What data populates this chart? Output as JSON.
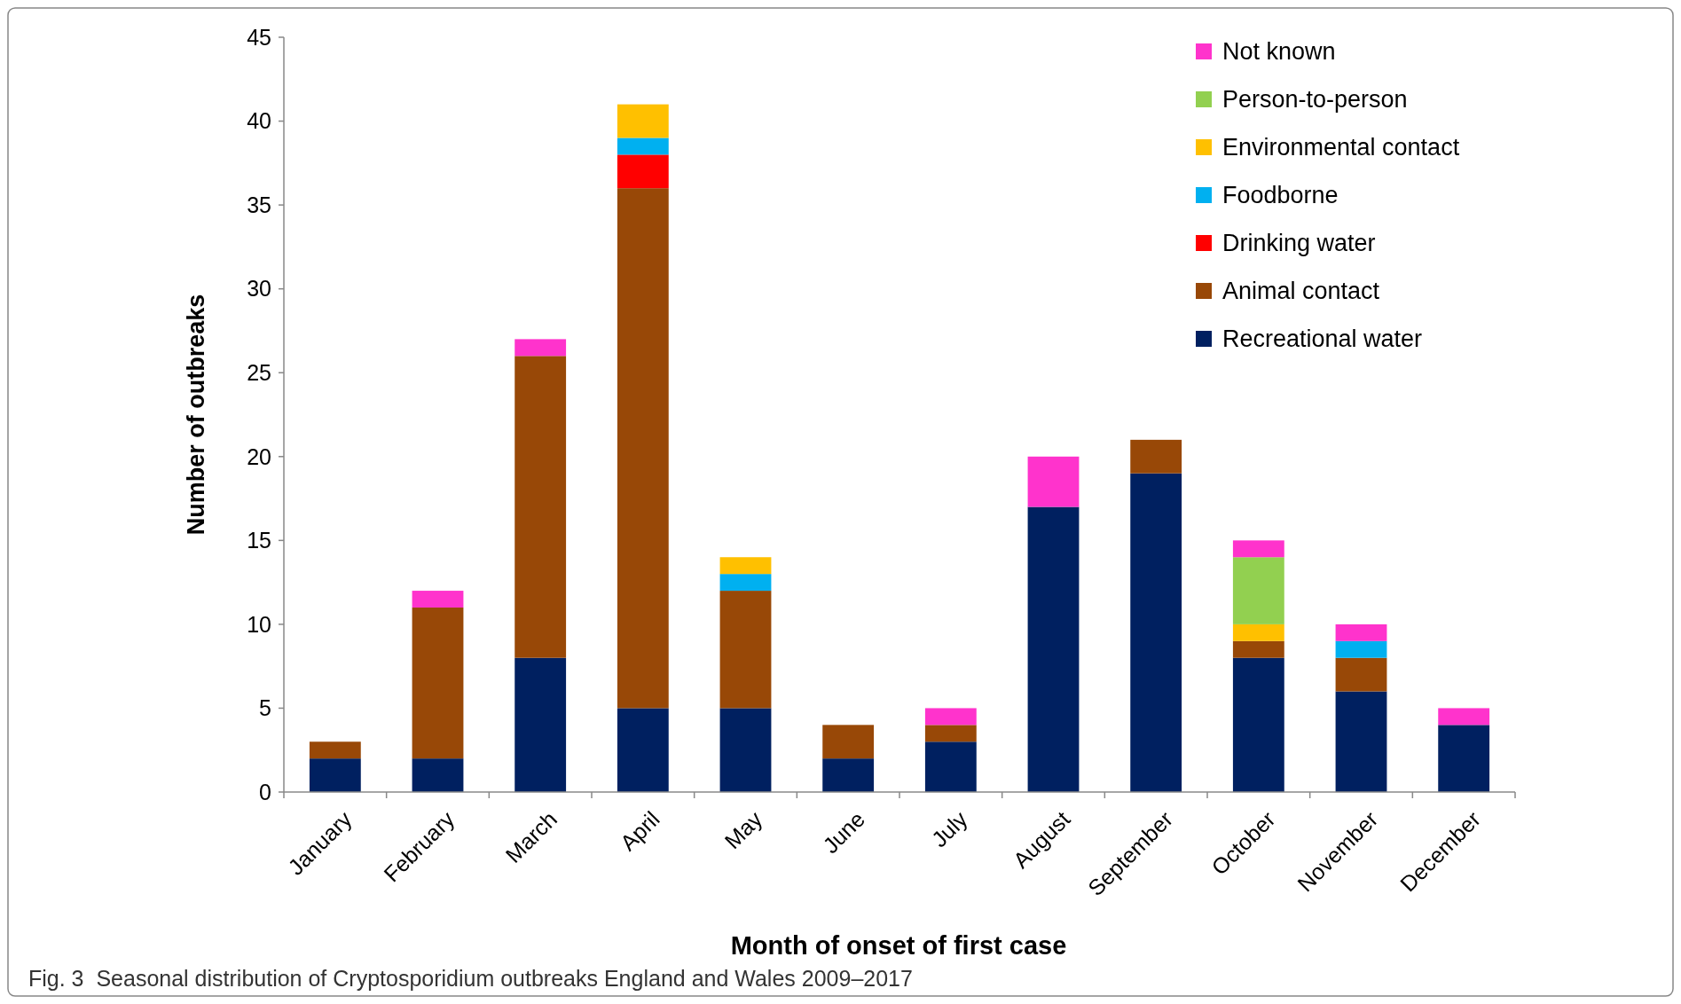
{
  "chart_data": {
    "type": "bar",
    "stacked": true,
    "xlabel": "Month of onset of first case",
    "ylabel": "Number of outbreaks",
    "categories": [
      "January",
      "February",
      "March",
      "April",
      "May",
      "June",
      "July",
      "August",
      "September",
      "October",
      "November",
      "December"
    ],
    "series": [
      {
        "name": "Recreational water",
        "color": "#002060",
        "values": [
          2,
          2,
          8,
          5,
          5,
          2,
          3,
          17,
          19,
          8,
          6,
          4
        ]
      },
      {
        "name": "Animal contact",
        "color": "#984807",
        "values": [
          1,
          9,
          18,
          31,
          7,
          2,
          1,
          null,
          2,
          1,
          2,
          null
        ]
      },
      {
        "name": "Drinking water",
        "color": "#ff0000",
        "values": [
          null,
          null,
          null,
          2,
          null,
          null,
          null,
          null,
          null,
          null,
          null,
          null
        ]
      },
      {
        "name": "Foodborne",
        "color": "#00b0f0",
        "values": [
          null,
          null,
          null,
          1,
          1,
          null,
          null,
          null,
          null,
          null,
          1,
          null
        ]
      },
      {
        "name": "Environmental contact",
        "color": "#ffc000",
        "values": [
          null,
          null,
          null,
          2,
          1,
          null,
          null,
          null,
          null,
          1,
          null,
          null
        ]
      },
      {
        "name": "Person-to-person",
        "color": "#92d050",
        "values": [
          null,
          null,
          null,
          null,
          null,
          null,
          null,
          null,
          null,
          4,
          null,
          null
        ]
      },
      {
        "name": "Not known",
        "color": "#ff33cc",
        "values": [
          null,
          1,
          1,
          null,
          null,
          null,
          1,
          3,
          null,
          1,
          1,
          1
        ]
      }
    ],
    "ylim": [
      0,
      45
    ],
    "yticks": [
      0,
      5,
      10,
      15,
      20,
      25,
      30,
      35,
      40,
      45
    ],
    "grid": false,
    "legend": "top right",
    "annotations": [
      "Fig. 3  Seasonal distribution of Cryptosporidium outbreaks England and Wales 2009–2017"
    ]
  }
}
